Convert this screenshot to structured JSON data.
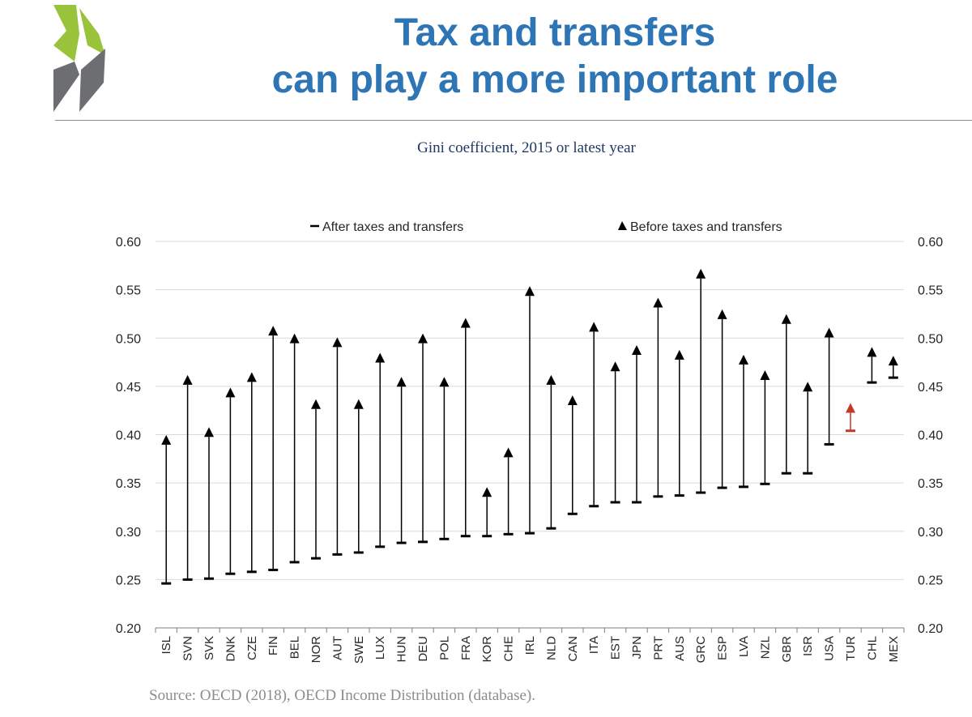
{
  "header": {
    "title_line1": "Tax and transfers",
    "title_line2": "can play a more important role",
    "brand_colors": {
      "light": "#9ac33c",
      "dark": "#6d6e71",
      "title": "#2e75b6"
    }
  },
  "subtitle": "Gini coefficient, 2015 or latest year",
  "source": "Source: OECD (2018), OECD Income Distribution (database).",
  "chart_data": {
    "type": "scatter",
    "legend_position": "top",
    "grid": true,
    "ylim": [
      0.2,
      0.6
    ],
    "yticks": [
      "0.20",
      "0.25",
      "0.30",
      "0.35",
      "0.40",
      "0.45",
      "0.50",
      "0.55",
      "0.60"
    ],
    "categories": [
      "ISL",
      "SVN",
      "SVK",
      "DNK",
      "CZE",
      "FIN",
      "BEL",
      "NOR",
      "AUT",
      "SWE",
      "LUX",
      "HUN",
      "DEU",
      "POL",
      "FRA",
      "KOR",
      "CHE",
      "IRL",
      "NLD",
      "CAN",
      "ITA",
      "EST",
      "JPN",
      "PRT",
      "AUS",
      "GRC",
      "ESP",
      "LVA",
      "NZL",
      "GBR",
      "ISR",
      "USA",
      "TUR",
      "CHL",
      "MEX"
    ],
    "highlight": "TUR",
    "colors": {
      "default": "#000000",
      "highlight": "#c0392b",
      "grid": "#d9d9d9"
    },
    "series": [
      {
        "name": "After taxes and transfers",
        "marker": "dash",
        "values": [
          0.246,
          0.25,
          0.251,
          0.256,
          0.258,
          0.26,
          0.268,
          0.272,
          0.276,
          0.278,
          0.284,
          0.288,
          0.289,
          0.292,
          0.295,
          0.295,
          0.297,
          0.298,
          0.303,
          0.318,
          0.326,
          0.33,
          0.33,
          0.336,
          0.337,
          0.34,
          0.345,
          0.346,
          0.349,
          0.36,
          0.36,
          0.39,
          0.404,
          0.454,
          0.459
        ]
      },
      {
        "name": "Before taxes and transfers",
        "marker": "triangle",
        "values": [
          0.393,
          0.455,
          0.401,
          0.442,
          0.458,
          0.506,
          0.498,
          0.43,
          0.494,
          0.43,
          0.478,
          0.453,
          0.498,
          0.453,
          0.514,
          0.339,
          0.38,
          0.547,
          0.455,
          0.434,
          0.51,
          0.469,
          0.486,
          0.535,
          0.481,
          0.565,
          0.523,
          0.476,
          0.46,
          0.518,
          0.448,
          0.504,
          0.426,
          0.484,
          0.475
        ]
      }
    ]
  }
}
